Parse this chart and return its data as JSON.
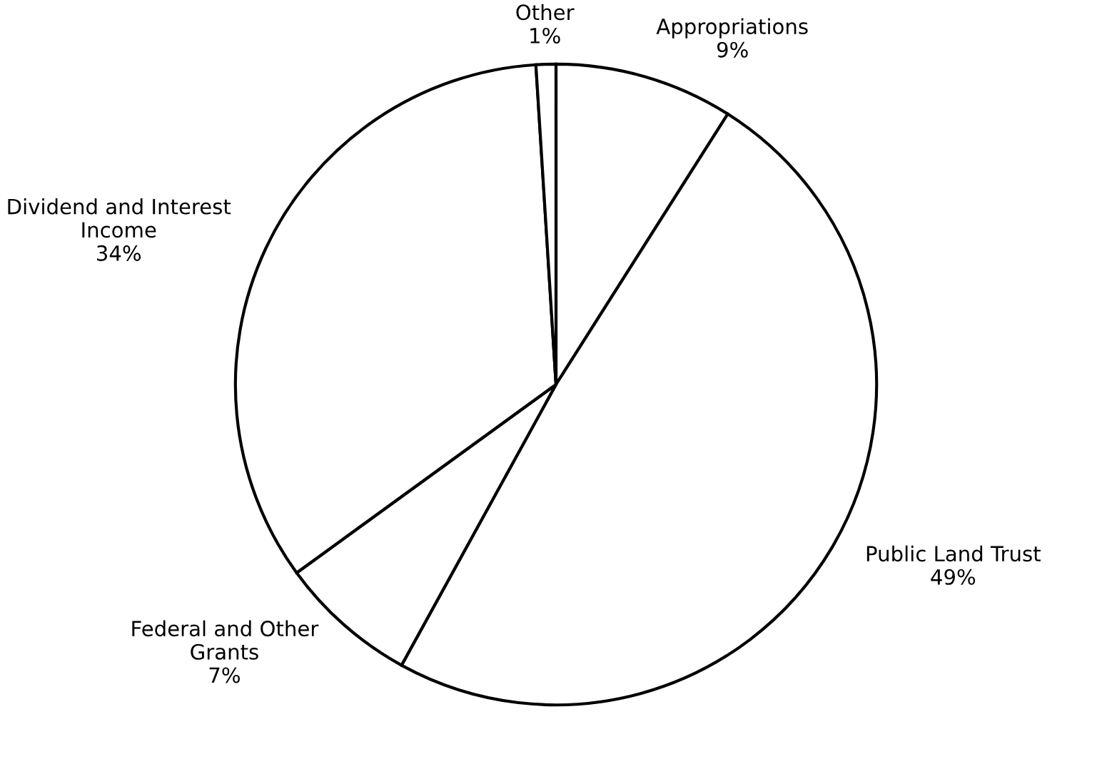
{
  "chart_data": {
    "type": "pie",
    "categories": [
      "Appropriations",
      "Public Land Trust",
      "Federal and Other\nGrants",
      "Dividend and Interest\nIncome",
      "Other"
    ],
    "values": [
      9,
      49,
      7,
      34,
      1
    ],
    "value_labels": [
      "9%",
      "49%",
      "7%",
      "34%",
      "1%"
    ],
    "colors": [
      "#ffffff",
      "#ffffff",
      "#ffffff",
      "#ffffff",
      "#ffffff"
    ]
  }
}
